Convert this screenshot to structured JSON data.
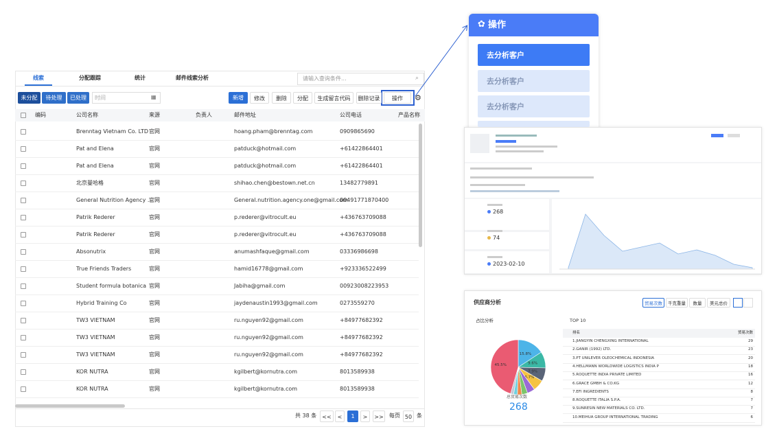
{
  "tabs": [
    "线索",
    "分配跟踪",
    "统计",
    "邮件线索分析"
  ],
  "search_placeholder": "请输入查询条件...",
  "status_buttons": [
    "未分配",
    "待处理",
    "已处理"
  ],
  "time_placeholder": "时间",
  "action_buttons": [
    "新增",
    "修改",
    "删除",
    "分配",
    "生成留言代码",
    "删除记录",
    "操作"
  ],
  "table": {
    "columns": [
      "编码",
      "公司名称",
      "来源",
      "负责人",
      "邮件地址",
      "公司电话",
      "产品名称"
    ],
    "rows": [
      {
        "company": "Brenntag Vietnam Co. LTD",
        "source": "官网",
        "email": "hoang.pham@brenntag.com",
        "phone": "0909865690"
      },
      {
        "company": "Pat and Elena",
        "source": "官网",
        "email": "patduck@hotmail.com",
        "phone": "+61422864401"
      },
      {
        "company": "Pat and Elena",
        "source": "官网",
        "email": "patduck@hotmail.com",
        "phone": "+61422864401"
      },
      {
        "company": "北京曼哈格",
        "source": "官网",
        "email": "shihao.chen@bestown.net.cn",
        "phone": "13482779891"
      },
      {
        "company": "General Nutrition Agency ...",
        "source": "官网",
        "email": "General.nutrition.agency.one@gmail.com",
        "phone": "00491771870400"
      },
      {
        "company": "Patrik Rederer",
        "source": "官网",
        "email": "p.rederer@vitrocult.eu",
        "phone": "+436763709088"
      },
      {
        "company": "Patrik Rederer",
        "source": "官网",
        "email": "p.rederer@vitrocult.eu",
        "phone": "+436763709088"
      },
      {
        "company": "Absonutrix",
        "source": "官网",
        "email": "anumashfaque@gmail.com",
        "phone": "03336986698"
      },
      {
        "company": "True Friends Traders",
        "source": "官网",
        "email": "hamid16778@gmail.com",
        "phone": "+923336522499"
      },
      {
        "company": "Student formula botanica",
        "source": "官网",
        "email": "Jabiha@gmail.com",
        "phone": "00923008223953"
      },
      {
        "company": "Hybrid Training Co",
        "source": "官网",
        "email": "jaydenaustin1993@gmail.com",
        "phone": "0273559270"
      },
      {
        "company": "TW3 VIETNAM",
        "source": "官网",
        "email": "ru.nguyen92@gmail.com",
        "phone": "+84977682392"
      },
      {
        "company": "TW3 VIETNAM",
        "source": "官网",
        "email": "ru.nguyen92@gmail.com",
        "phone": "+84977682392"
      },
      {
        "company": "TW3 VIETNAM",
        "source": "官网",
        "email": "ru.nguyen92@gmail.com",
        "phone": "+84977682392"
      },
      {
        "company": "KOR NUTRA",
        "source": "官网",
        "email": "kgilbert@kornutra.com",
        "phone": "8013589938"
      },
      {
        "company": "KOR NUTRA",
        "source": "官网",
        "email": "kgilbert@kornutra.com",
        "phone": "8013589938"
      }
    ]
  },
  "pagination": {
    "total": "共 38 条",
    "first": "<<",
    "prev": "<",
    "page": "1",
    "next": ">",
    "last": ">>",
    "per_page_label": "每页",
    "per_page": "50",
    "unit": "条"
  },
  "popup": {
    "title": "操作",
    "items": [
      "去分析客户",
      "去分析客户",
      "去分析客户"
    ]
  },
  "dashboard": {
    "stats": [
      "268",
      "74",
      "2023-02-10"
    ]
  },
  "supplier": {
    "title": "供应商分析",
    "tabs": [
      "贸易次数",
      "千克重量",
      "数量",
      "美元总价"
    ],
    "share_title": "占比分析",
    "top_title": "TOP 10",
    "pie": {
      "values": [
        15.8,
        9.6,
        7.9,
        6.7,
        4.5,
        3.4,
        2.6,
        2.2,
        1.8,
        45.5
      ],
      "value_labels": [
        "15.8%",
        "9.6%",
        "7.9%",
        "6.7%",
        null,
        null,
        null,
        null,
        null,
        "45.5%"
      ],
      "colors": [
        "#4db4e8",
        "#3bb8a6",
        "#5a6478",
        "#f5c342",
        "#9a6ad6",
        "#7cc56b",
        "#f08a4b",
        "#6fd0e0",
        "#c3c8d4",
        "#ea5b72"
      ]
    },
    "total_label": "总贸易次数",
    "total": "268",
    "top_columns": [
      "排名",
      "贸易次数"
    ],
    "top_rows": [
      [
        "1.JIANGYIN CHENGXING INTERNATIONAL",
        "29"
      ],
      [
        "2.GANIR (1992) LTD.",
        "23"
      ],
      [
        "3.PT UNILEVER OLEOCHEMICAL INDONESIA",
        "20"
      ],
      [
        "4.HELLMANN WORLDWIDE LOGISTICS INDIA P",
        "18"
      ],
      [
        "5.ROQUETTE INDIA PRIVATE LIMITED",
        "16"
      ],
      [
        "6.GRACE GMBH & CO.KG",
        "12"
      ],
      [
        "7.EFI INGREDIENTS",
        "8"
      ],
      [
        "8.ROQUETTE ITALIA S.P.A.",
        "7"
      ],
      [
        "9.SUNRESIN NEW MATERIALS CO. LTD.",
        "7"
      ],
      [
        "10.MEIHUA GROUP INTERNATIONAL TRADING",
        "6"
      ]
    ]
  }
}
